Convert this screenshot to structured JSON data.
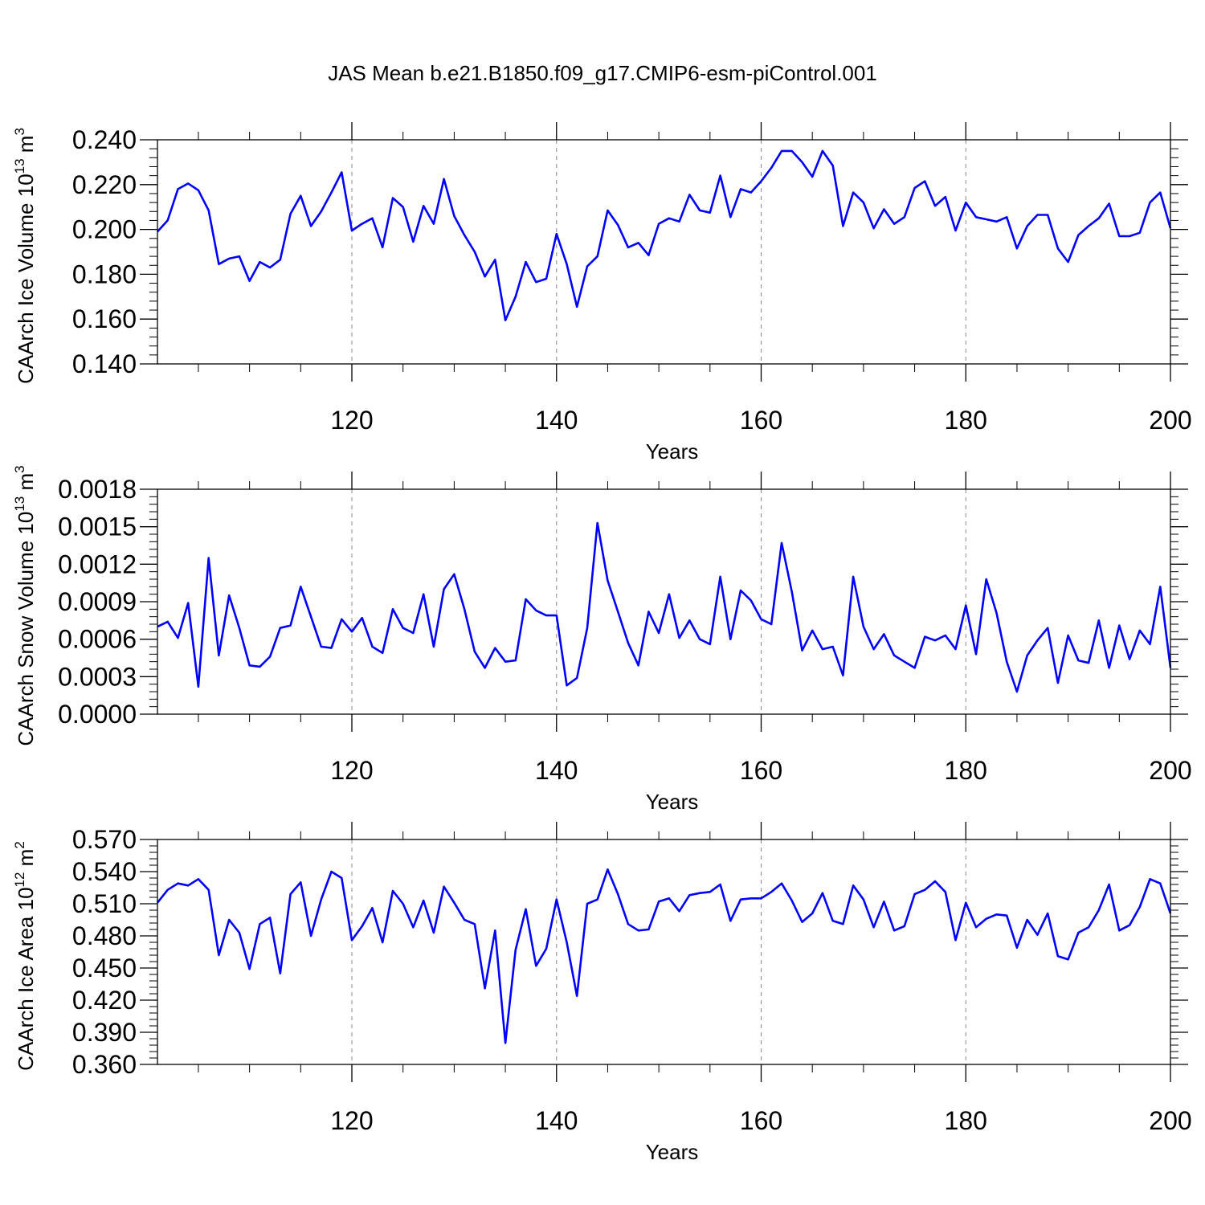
{
  "title": "JAS Mean b.e21.B1850.f09_g17.CMIP6-esm-piControl.001",
  "colors": {
    "line": "#0000ff",
    "axis": "#000000",
    "grid": "#888888"
  },
  "chart_data": [
    {
      "type": "line",
      "xlabel": "Years",
      "ylabel_base": "CAArch Ice Volume 10",
      "ylabel_exp": "13",
      "ylabel_unit": " m",
      "ylabel_unit_exp": "3",
      "xlim": [
        101,
        200
      ],
      "ylim": [
        0.14,
        0.24
      ],
      "yticks": [
        0.14,
        0.16,
        0.18,
        0.2,
        0.22,
        0.24
      ],
      "ytick_labels": [
        "0.140",
        "0.160",
        "0.180",
        "0.200",
        "0.220",
        "0.240"
      ],
      "xticks": [
        120,
        140,
        160,
        180,
        200
      ],
      "xtick_labels": [
        "120",
        "140",
        "160",
        "180",
        "200"
      ],
      "grid_x": true,
      "x_start": 101,
      "values": [
        0.199,
        0.204,
        0.218,
        0.2205,
        0.2175,
        0.2085,
        0.1845,
        0.187,
        0.188,
        0.177,
        0.1855,
        0.183,
        0.1865,
        0.207,
        0.215,
        0.2015,
        0.208,
        0.2165,
        0.2255,
        0.1995,
        0.2025,
        0.205,
        0.192,
        0.214,
        0.21,
        0.1945,
        0.2105,
        0.2025,
        0.2225,
        0.206,
        0.1975,
        0.19,
        0.179,
        0.1865,
        0.1595,
        0.17,
        0.1855,
        0.1765,
        0.178,
        0.198,
        0.1845,
        0.1655,
        0.1835,
        0.188,
        0.2085,
        0.202,
        0.192,
        0.194,
        0.1885,
        0.2025,
        0.205,
        0.2035,
        0.2155,
        0.2085,
        0.2075,
        0.224,
        0.2055,
        0.218,
        0.2165,
        0.2215,
        0.2275,
        0.235,
        0.235,
        0.23,
        0.2235,
        0.235,
        0.2285,
        0.2015,
        0.2165,
        0.212,
        0.2005,
        0.209,
        0.2025,
        0.2055,
        0.2185,
        0.2215,
        0.2105,
        0.2145,
        0.1995,
        0.212,
        0.2055,
        0.2045,
        0.2035,
        0.2055,
        0.1915,
        0.2015,
        0.2065,
        0.2065,
        0.1915,
        0.1855,
        0.1975,
        0.2015,
        0.205,
        0.2115,
        0.197,
        0.197,
        0.1985,
        0.212,
        0.2165,
        0.2005
      ]
    },
    {
      "type": "line",
      "xlabel": "Years",
      "ylabel_base": "CAArch Snow Volume 10",
      "ylabel_exp": "13",
      "ylabel_unit": " m",
      "ylabel_unit_exp": "3",
      "xlim": [
        101,
        200
      ],
      "ylim": [
        0,
        0.0018
      ],
      "yticks": [
        0,
        0.0003,
        0.0006,
        0.0009,
        0.0012,
        0.0015,
        0.0018
      ],
      "ytick_labels": [
        "0.0000",
        "0.0003",
        "0.0006",
        "0.0009",
        "0.0012",
        "0.0015",
        "0.0018"
      ],
      "xticks": [
        120,
        140,
        160,
        180,
        200
      ],
      "xtick_labels": [
        "120",
        "140",
        "160",
        "180",
        "200"
      ],
      "grid_x": true,
      "x_start": 101,
      "values": [
        0.0007,
        0.00074,
        0.00061,
        0.00089,
        0.00022,
        0.00125,
        0.00047,
        0.00095,
        0.00069,
        0.00039,
        0.00038,
        0.00046,
        0.00069,
        0.00071,
        0.00102,
        0.00078,
        0.00054,
        0.00053,
        0.00076,
        0.00066,
        0.00077,
        0.00054,
        0.00049,
        0.00084,
        0.00069,
        0.00065,
        0.00096,
        0.00054,
        0.001,
        0.00112,
        0.00084,
        0.0005,
        0.00037,
        0.00053,
        0.00042,
        0.00043,
        0.00092,
        0.00083,
        0.00079,
        0.00079,
        0.00023,
        0.00029,
        0.00069,
        0.00153,
        0.00107,
        0.00082,
        0.00057,
        0.00039,
        0.00082,
        0.00065,
        0.00096,
        0.00061,
        0.00075,
        0.0006,
        0.00056,
        0.0011,
        0.0006,
        0.00099,
        0.00091,
        0.00076,
        0.00072,
        0.00137,
        0.00098,
        0.00051,
        0.00067,
        0.00052,
        0.00054,
        0.00031,
        0.0011,
        0.0007,
        0.00052,
        0.00064,
        0.00047,
        0.00042,
        0.00037,
        0.00062,
        0.00059,
        0.00063,
        0.00052,
        0.00087,
        0.00048,
        0.00108,
        0.00081,
        0.00042,
        0.00018,
        0.00047,
        0.00059,
        0.00069,
        0.00025,
        0.00063,
        0.00043,
        0.00041,
        0.00075,
        0.00037,
        0.00071,
        0.00044,
        0.00067,
        0.00056,
        0.00102,
        0.00037
      ]
    },
    {
      "type": "line",
      "xlabel": "Years",
      "ylabel_base": "CAArch Ice Area 10",
      "ylabel_exp": "12",
      "ylabel_unit": " m",
      "ylabel_unit_exp": "2",
      "xlim": [
        101,
        200
      ],
      "ylim": [
        0.36,
        0.57
      ],
      "yticks": [
        0.36,
        0.39,
        0.42,
        0.45,
        0.48,
        0.51,
        0.54,
        0.57
      ],
      "ytick_labels": [
        "0.360",
        "0.390",
        "0.420",
        "0.450",
        "0.480",
        "0.510",
        "0.540",
        "0.570"
      ],
      "xticks": [
        120,
        140,
        160,
        180,
        200
      ],
      "xtick_labels": [
        "120",
        "140",
        "160",
        "180",
        "200"
      ],
      "grid_x": true,
      "x_start": 101,
      "values": [
        0.511,
        0.523,
        0.529,
        0.527,
        0.533,
        0.523,
        0.462,
        0.495,
        0.483,
        0.449,
        0.491,
        0.497,
        0.445,
        0.519,
        0.53,
        0.48,
        0.514,
        0.54,
        0.534,
        0.476,
        0.489,
        0.506,
        0.474,
        0.522,
        0.51,
        0.488,
        0.513,
        0.483,
        0.526,
        0.511,
        0.495,
        0.491,
        0.431,
        0.485,
        0.38,
        0.467,
        0.505,
        0.452,
        0.468,
        0.514,
        0.474,
        0.424,
        0.51,
        0.514,
        0.542,
        0.519,
        0.491,
        0.485,
        0.486,
        0.512,
        0.515,
        0.503,
        0.518,
        0.52,
        0.521,
        0.528,
        0.494,
        0.514,
        0.515,
        0.515,
        0.521,
        0.529,
        0.513,
        0.493,
        0.501,
        0.52,
        0.494,
        0.491,
        0.527,
        0.514,
        0.488,
        0.512,
        0.485,
        0.489,
        0.519,
        0.523,
        0.531,
        0.521,
        0.476,
        0.511,
        0.488,
        0.496,
        0.5,
        0.499,
        0.469,
        0.495,
        0.481,
        0.501,
        0.461,
        0.458,
        0.483,
        0.488,
        0.504,
        0.528,
        0.485,
        0.49,
        0.507,
        0.533,
        0.529,
        0.501
      ]
    }
  ]
}
